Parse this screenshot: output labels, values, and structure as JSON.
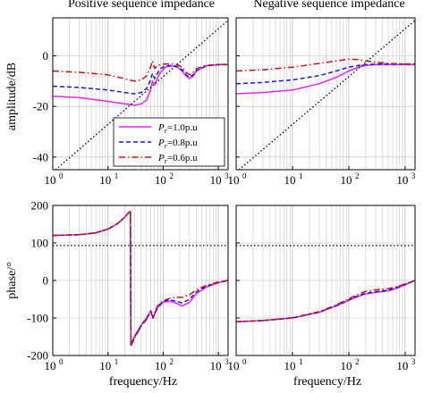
{
  "figure": {
    "colors": {
      "pr_1_0": "#ee22ee",
      "pr_0_8": "#1a1adc",
      "pr_0_6": "#cc1111",
      "grid": "#bbbbbb",
      "reference": "#000000"
    }
  },
  "chart_data": [
    {
      "type": "line",
      "title": "Positive sequence impedance",
      "xlabel": "",
      "ylabel": "amplitude/dB",
      "xscale": "log",
      "xlim": [
        1,
        1500
      ],
      "ylim": [
        -45,
        15
      ],
      "xticks": [
        1,
        10,
        100,
        1000
      ],
      "xticklabels": [
        "10",
        "10",
        "10",
        "10"
      ],
      "xtick_exponents": [
        "0",
        "1",
        "2",
        "3"
      ],
      "yticks": [
        0,
        -20,
        -40
      ],
      "yticklabels": [
        "0",
        "-20",
        "-40"
      ],
      "grid": true,
      "legend": {
        "placement": "lower-right",
        "entries": [
          {
            "sym": "P",
            "sub": "r",
            "text": "=1.0p.u"
          },
          {
            "sym": "P",
            "sub": "r",
            "text": "=0.8p.u"
          },
          {
            "sym": "P",
            "sub": "r",
            "text": "=0.6p.u"
          }
        ]
      },
      "series": [
        {
          "style": "solid",
          "color": "pr_1_0",
          "x": [
            1,
            3,
            10,
            20,
            30,
            40,
            50,
            58,
            64,
            70,
            78,
            90,
            110,
            140,
            180,
            220,
            260,
            300,
            350,
            400,
            600,
            1000,
            1500
          ],
          "y": [
            -16,
            -16.5,
            -18,
            -19,
            -19.5,
            -19,
            -17.5,
            -14,
            -10,
            -11.5,
            -9,
            -6.5,
            -4.5,
            -4,
            -4.5,
            -6,
            -8,
            -9,
            -8,
            -6,
            -4,
            -3.5,
            -3.5
          ]
        },
        {
          "style": "dashed",
          "color": "pr_0_8",
          "x": [
            1,
            3,
            10,
            20,
            30,
            40,
            50,
            58,
            64,
            70,
            78,
            90,
            110,
            140,
            180,
            220,
            260,
            300,
            350,
            400,
            600,
            1000,
            1500
          ],
          "y": [
            -12,
            -12.5,
            -13.5,
            -14.5,
            -15,
            -14.5,
            -13,
            -10,
            -7,
            -9,
            -7,
            -5,
            -4,
            -3.8,
            -4.2,
            -5.5,
            -7.5,
            -8.5,
            -7.5,
            -5.8,
            -4,
            -3.5,
            -3.5
          ]
        },
        {
          "style": "dashdot",
          "color": "pr_0_6",
          "x": [
            1,
            3,
            10,
            20,
            30,
            40,
            50,
            58,
            64,
            70,
            78,
            90,
            110,
            140,
            180,
            220,
            260,
            300,
            350,
            400,
            600,
            1000,
            1500
          ],
          "y": [
            -6,
            -6.5,
            -7.5,
            -9,
            -10,
            -9.5,
            -8,
            -5,
            -2,
            -5,
            -4,
            -3.5,
            -3.2,
            -3.2,
            -3.5,
            -4.5,
            -6.5,
            -7.5,
            -6.5,
            -5,
            -3.8,
            -3.4,
            -3.4
          ]
        },
        {
          "style": "dotted",
          "color": "reference",
          "x": [
            1,
            1500
          ],
          "y": [
            -46,
            14
          ]
        }
      ]
    },
    {
      "type": "line",
      "title": "Negative sequence impedance",
      "xlabel": "",
      "ylabel": "",
      "xscale": "log",
      "xlim": [
        1,
        1500
      ],
      "ylim": [
        -45,
        15
      ],
      "xticks": [
        1,
        10,
        100,
        1000
      ],
      "xticklabels": [
        "10",
        "10",
        "10",
        "10"
      ],
      "xtick_exponents": [
        "0",
        "1",
        "2",
        "3"
      ],
      "yticks": [
        0,
        -20,
        -40
      ],
      "grid": true,
      "series": [
        {
          "style": "solid",
          "color": "pr_1_0",
          "x": [
            1,
            3,
            10,
            30,
            60,
            100,
            150,
            200,
            300,
            500,
            1000,
            1500
          ],
          "y": [
            -15,
            -14.5,
            -13.5,
            -11,
            -8.5,
            -6,
            -4.5,
            -3.8,
            -3.5,
            -3.5,
            -3.5,
            -3.5
          ]
        },
        {
          "style": "dashed",
          "color": "pr_0_8",
          "x": [
            1,
            3,
            10,
            30,
            60,
            100,
            150,
            200,
            300,
            500,
            1000,
            1500
          ],
          "y": [
            -11,
            -10.5,
            -9.5,
            -7.8,
            -6,
            -4.5,
            -3.8,
            -3.5,
            -3.3,
            -3.3,
            -3.3,
            -3.3
          ]
        },
        {
          "style": "dashdot",
          "color": "pr_0_6",
          "x": [
            1,
            3,
            10,
            30,
            60,
            100,
            150,
            200,
            300,
            500,
            1000,
            1500
          ],
          "y": [
            -6,
            -5.5,
            -4.5,
            -3,
            -2,
            -1.3,
            -1.5,
            -2,
            -2.5,
            -3,
            -3.2,
            -3.2
          ]
        },
        {
          "style": "dotted",
          "color": "reference",
          "x": [
            1,
            1500
          ],
          "y": [
            -46,
            14
          ]
        }
      ]
    },
    {
      "type": "line",
      "title": "",
      "xlabel": "frequency/Hz",
      "ylabel": "phase/°",
      "xscale": "log",
      "xlim": [
        1,
        1500
      ],
      "ylim": [
        -200,
        200
      ],
      "xticks": [
        1,
        10,
        100,
        1000
      ],
      "xticklabels": [
        "10",
        "10",
        "10",
        "10"
      ],
      "xtick_exponents": [
        "0",
        "1",
        "2",
        "3"
      ],
      "yticks": [
        200,
        100,
        0,
        -100,
        -200
      ],
      "yticklabels": [
        "200",
        "100",
        "0",
        "-100",
        "-200"
      ],
      "grid": true,
      "series": [
        {
          "style": "solid",
          "color": "pr_1_0",
          "x": [
            1,
            3,
            6,
            10,
            15,
            20,
            24,
            25.5,
            26,
            30,
            40,
            50,
            60,
            65,
            70,
            80,
            100,
            130,
            170,
            220,
            300,
            400,
            600,
            1000,
            1500
          ],
          "y": [
            120,
            122,
            127,
            137,
            152,
            168,
            182,
            185,
            -170,
            -150,
            -118,
            -100,
            -80,
            -100,
            -90,
            -72,
            -58,
            -55,
            -60,
            -68,
            -58,
            -35,
            -18,
            -6,
            0
          ]
        },
        {
          "style": "dashed",
          "color": "pr_0_8",
          "x": [
            1,
            3,
            6,
            10,
            15,
            20,
            24,
            25.5,
            26,
            30,
            40,
            50,
            60,
            65,
            70,
            80,
            100,
            130,
            170,
            220,
            300,
            400,
            600,
            1000,
            1500
          ],
          "y": [
            120,
            122,
            127,
            137,
            152,
            168,
            182,
            185,
            -172,
            -152,
            -120,
            -102,
            -82,
            -100,
            -88,
            -70,
            -56,
            -52,
            -55,
            -60,
            -50,
            -30,
            -16,
            -5,
            0
          ]
        },
        {
          "style": "dashdot",
          "color": "pr_0_6",
          "x": [
            1,
            3,
            6,
            10,
            15,
            20,
            24,
            25.5,
            26,
            30,
            40,
            50,
            60,
            65,
            70,
            80,
            100,
            130,
            170,
            220,
            300,
            400,
            600,
            1000,
            1500
          ],
          "y": [
            120,
            122,
            127,
            137,
            152,
            168,
            182,
            185,
            -175,
            -155,
            -122,
            -104,
            -85,
            -97,
            -85,
            -67,
            -54,
            -48,
            -45,
            -45,
            -38,
            -25,
            -13,
            -4,
            0
          ]
        },
        {
          "style": "dotted",
          "color": "reference",
          "x": [
            1,
            1500
          ],
          "y": [
            93,
            93
          ]
        }
      ]
    },
    {
      "type": "line",
      "title": "",
      "xlabel": "frequency/Hz",
      "ylabel": "",
      "xscale": "log",
      "xlim": [
        1,
        1500
      ],
      "ylim": [
        -200,
        200
      ],
      "xticks": [
        1,
        10,
        100,
        1000
      ],
      "xticklabels": [
        "10",
        "10",
        "10",
        "10"
      ],
      "xtick_exponents": [
        "0",
        "1",
        "2",
        "3"
      ],
      "yticks": [
        200,
        100,
        0,
        -100,
        -200
      ],
      "grid": true,
      "series": [
        {
          "style": "solid",
          "color": "pr_1_0",
          "x": [
            1,
            3,
            10,
            30,
            60,
            100,
            150,
            200,
            300,
            500,
            800,
            1500
          ],
          "y": [
            -110,
            -107,
            -100,
            -85,
            -68,
            -53,
            -42,
            -36,
            -32,
            -28,
            -18,
            0
          ]
        },
        {
          "style": "dashed",
          "color": "pr_0_8",
          "x": [
            1,
            3,
            10,
            30,
            60,
            100,
            150,
            200,
            300,
            500,
            800,
            1500
          ],
          "y": [
            -110,
            -107,
            -100,
            -84,
            -67,
            -52,
            -40,
            -34,
            -30,
            -26,
            -16,
            0
          ]
        },
        {
          "style": "dashdot",
          "color": "pr_0_6",
          "x": [
            1,
            3,
            10,
            30,
            60,
            100,
            150,
            200,
            300,
            500,
            800,
            1500
          ],
          "y": [
            -110,
            -107,
            -99,
            -83,
            -65,
            -49,
            -36,
            -29,
            -25,
            -22,
            -14,
            0
          ]
        },
        {
          "style": "dotted",
          "color": "reference",
          "x": [
            1,
            1500
          ],
          "y": [
            93,
            93
          ]
        }
      ]
    }
  ]
}
